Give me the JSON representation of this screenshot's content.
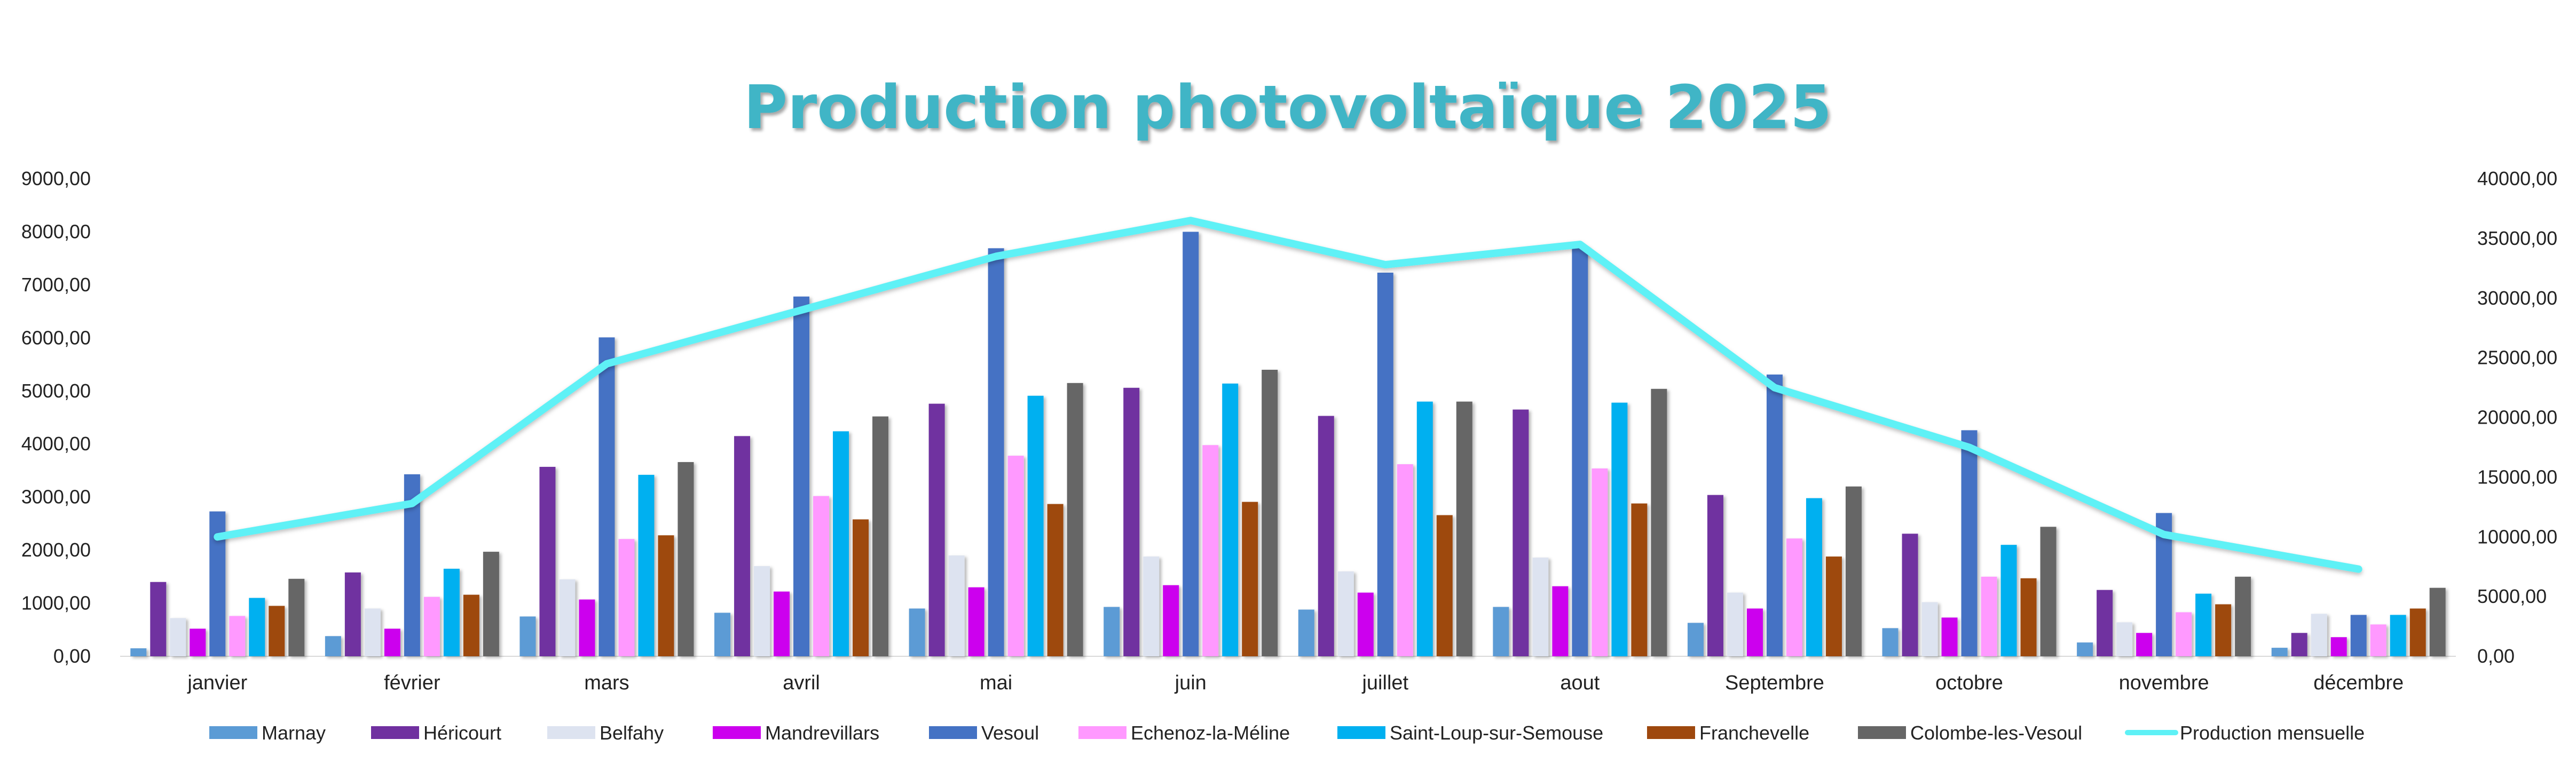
{
  "chart_data": {
    "type": "bar",
    "title": "Production photovoltaïque 2025",
    "title_color": "#3FB5C6",
    "categories": [
      "janvier",
      "février",
      "mars",
      "avril",
      "mai",
      "juin",
      "juillet",
      "aout",
      "Septembre",
      "octobre",
      "novembre",
      "décembre"
    ],
    "ylim": [
      0,
      9000
    ],
    "y_ticks": [
      "0,00",
      "1000,00",
      "2000,00",
      "3000,00",
      "4000,00",
      "5000,00",
      "6000,00",
      "7000,00",
      "8000,00",
      "9000,00"
    ],
    "y2lim": [
      0,
      40000
    ],
    "y2_ticks": [
      "0,00",
      "5000,00",
      "10000,00",
      "15000,00",
      "20000,00",
      "25000,00",
      "30000,00",
      "35000,00",
      "40000,00"
    ],
    "grid": false,
    "legend_position": "bottom",
    "series": [
      {
        "name": "Marnay",
        "color": "#5B9BD5",
        "values": [
          150,
          380,
          750,
          820,
          900,
          930,
          880,
          930,
          630,
          530,
          260,
          160
        ]
      },
      {
        "name": "Héricourt",
        "color": "#7030A0",
        "values": [
          1400,
          1580,
          3570,
          4150,
          4760,
          5060,
          4530,
          4650,
          3040,
          2310,
          1250,
          440
        ]
      },
      {
        "name": "Belfahy",
        "color": "#DDE3F0",
        "values": [
          720,
          900,
          1450,
          1700,
          1900,
          1880,
          1600,
          1860,
          1200,
          1020,
          640,
          800
        ]
      },
      {
        "name": "Mandrevillars",
        "color": "#CC00EE",
        "values": [
          520,
          520,
          1070,
          1220,
          1300,
          1340,
          1200,
          1320,
          900,
          730,
          440,
          360
        ]
      },
      {
        "name": "Vesoul",
        "color": "#4472C4",
        "values": [
          2730,
          3430,
          6010,
          6780,
          7690,
          8000,
          7230,
          7720,
          5310,
          4260,
          2700,
          780
        ]
      },
      {
        "name": "Echenoz-la-Méline",
        "color": "#FF99FF",
        "values": [
          760,
          1120,
          2210,
          3020,
          3780,
          3980,
          3620,
          3540,
          2220,
          1500,
          830,
          600
        ]
      },
      {
        "name": "Saint-Loup-sur-Semouse",
        "color": "#00B0F0",
        "values": [
          1100,
          1650,
          3420,
          4240,
          4910,
          5140,
          4800,
          4780,
          2980,
          2100,
          1180,
          780
        ]
      },
      {
        "name": "Franchevelle",
        "color": "#9E480E",
        "values": [
          950,
          1160,
          2280,
          2580,
          2870,
          2910,
          2660,
          2880,
          1880,
          1470,
          980,
          900
        ]
      },
      {
        "name": "Colombe-les-Vesoul",
        "color": "#666666",
        "values": [
          1460,
          1970,
          3660,
          4520,
          5150,
          5400,
          4800,
          5040,
          3200,
          2440,
          1500,
          1290
        ]
      }
    ],
    "line_series": {
      "name": "Production mensuelle",
      "axis": "secondary",
      "color": "#5EF1F6",
      "values": [
        10000,
        12800,
        24500,
        29000,
        33500,
        36500,
        32800,
        34500,
        22500,
        17500,
        10200,
        7300
      ]
    }
  }
}
